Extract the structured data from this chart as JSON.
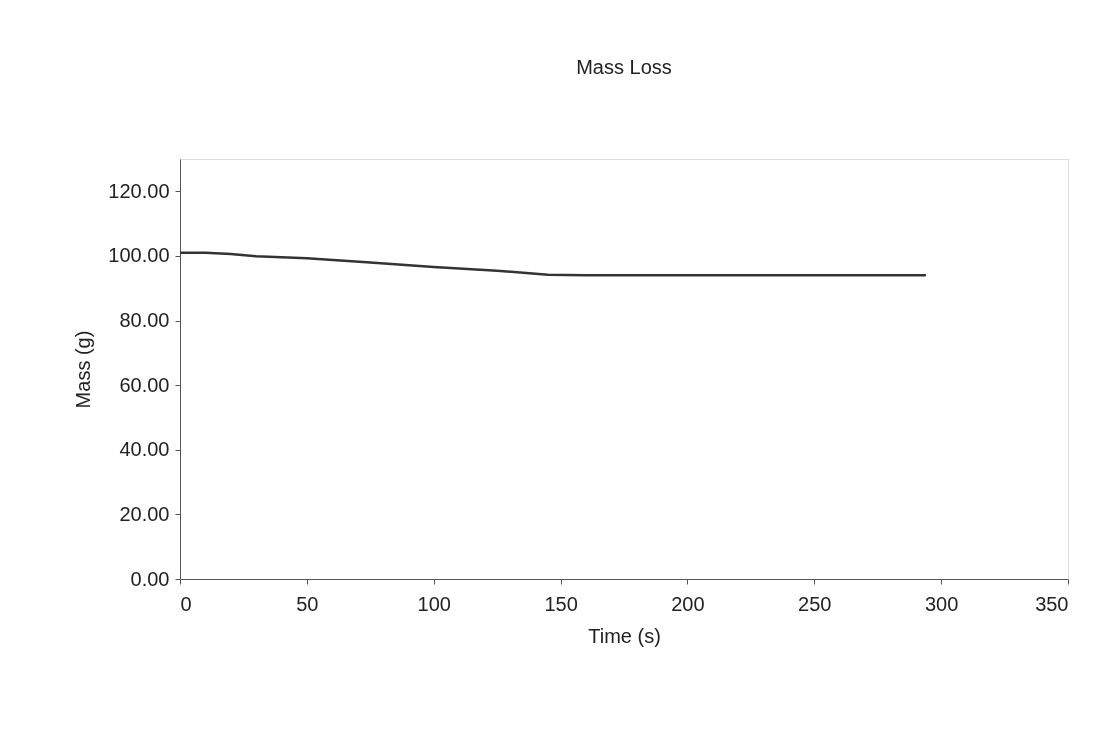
{
  "chart_data": {
    "type": "line",
    "title": "Mass Loss",
    "xlabel": "Time (s)",
    "ylabel": "Mass (g)",
    "xlim": [
      0,
      350
    ],
    "xticks": [
      0,
      50,
      100,
      150,
      200,
      250,
      300,
      350
    ],
    "ylim": [
      0,
      130
    ],
    "yticks": [
      {
        "value": 0,
        "label": "0.00"
      },
      {
        "value": 20,
        "label": "20.00"
      },
      {
        "value": 40,
        "label": "40.00"
      },
      {
        "value": 60,
        "label": "60.00"
      },
      {
        "value": 80,
        "label": "80.00"
      },
      {
        "value": 100,
        "label": "100.00"
      },
      {
        "value": 120,
        "label": "120.00"
      }
    ],
    "series": [
      {
        "color": "#333333",
        "x": [
          0,
          10,
          20,
          30,
          50,
          75,
          100,
          125,
          145,
          160,
          200,
          250,
          294
        ],
        "values": [
          101.0,
          101.0,
          100.6,
          99.9,
          99.3,
          98.0,
          96.6,
          95.4,
          94.2,
          94.0,
          94.0,
          94.0,
          94.0
        ]
      }
    ],
    "grid": false,
    "marker": "none",
    "line_style": "solid"
  }
}
